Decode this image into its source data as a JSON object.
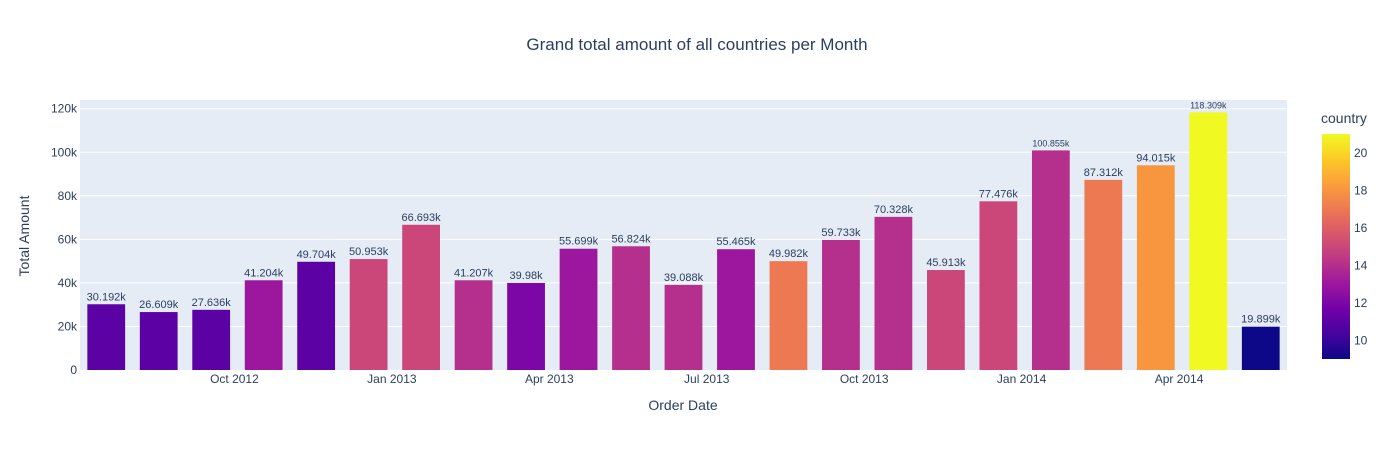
{
  "chart_data": {
    "type": "bar",
    "title": "Grand total amount of all countries per Month",
    "xlabel": "Order Date",
    "ylabel": "Total Amount",
    "x_tick_labels": [
      "Oct 2012",
      "Jan 2013",
      "Apr 2013",
      "Jul 2013",
      "Oct 2013",
      "Jan 2014",
      "Apr 2014"
    ],
    "y_tick_labels": [
      "0",
      "20k",
      "40k",
      "60k",
      "80k",
      "100k",
      "120k"
    ],
    "ylim": [
      0,
      124000
    ],
    "grid": true,
    "categories": [
      "2012-07",
      "2012-08",
      "2012-09",
      "2012-10",
      "2012-11",
      "2012-12",
      "2013-01",
      "2013-02",
      "2013-03",
      "2013-04",
      "2013-05",
      "2013-06",
      "2013-07",
      "2013-08",
      "2013-09",
      "2013-10",
      "2013-11",
      "2013-12",
      "2014-01",
      "2014-02",
      "2014-03",
      "2014-04",
      "2014-05"
    ],
    "values": [
      30192,
      26609,
      27636,
      41204,
      49704,
      50953,
      66693,
      41207,
      39980,
      55699,
      56824,
      39088,
      55465,
      49982,
      59733,
      70328,
      45913,
      77476,
      100855,
      87312,
      94015,
      118309,
      19899
    ],
    "value_labels": [
      "30.192k",
      "26.609k",
      "27.636k",
      "41.204k",
      "49.704k",
      "50.953k",
      "66.693k",
      "41.207k",
      "39.98k",
      "55.699k",
      "56.824k",
      "39.088k",
      "55.465k",
      "49.982k",
      "59.733k",
      "70.328k",
      "45.913k",
      "77.476k",
      "100.855k",
      "87.312k",
      "94.015k",
      "118.309k",
      "19.899k"
    ],
    "color_values": [
      11,
      11,
      11,
      13,
      11,
      15,
      15,
      14,
      12,
      13,
      14,
      14,
      13,
      17,
      14,
      14,
      15,
      15,
      14,
      17,
      18,
      21,
      9
    ],
    "colorbar": {
      "title": "country",
      "range": [
        9,
        21
      ],
      "tick_labels": [
        "10",
        "12",
        "14",
        "16",
        "18",
        "20"
      ],
      "colorscale": [
        "#0d0887",
        "#46039f",
        "#7201a8",
        "#9c179e",
        "#bd3786",
        "#d8576b",
        "#ed7953",
        "#fb9f3a",
        "#fdca26",
        "#f0f921"
      ]
    },
    "colors": {
      "plot_bg": "#e5ecf6",
      "grid": "#ffffff",
      "text": "#2a3f5f"
    }
  }
}
